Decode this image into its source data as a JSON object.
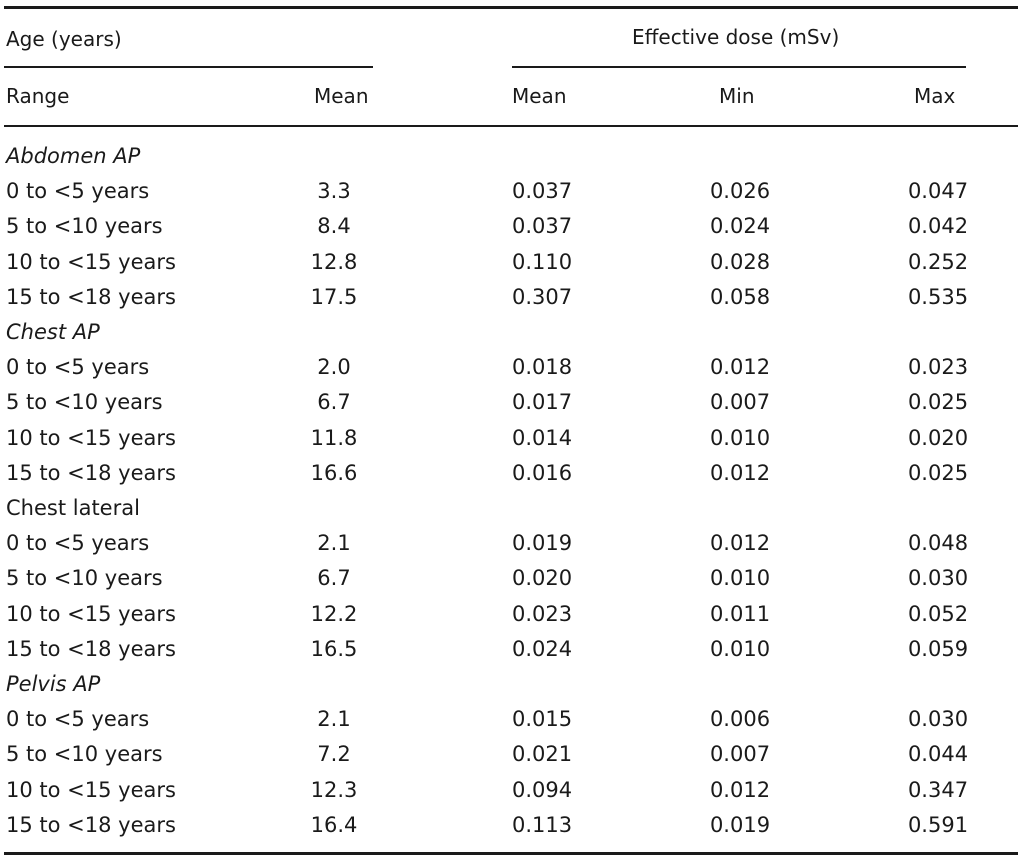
{
  "header": {
    "age_group": "Age (years)",
    "dose_group": "Effective dose (mSv)",
    "col_range": "Range",
    "col_age_mean": "Mean",
    "col_dose_mean": "Mean",
    "col_min": "Min",
    "col_max": "Max"
  },
  "groups": [
    {
      "title": "Abdomen AP",
      "italic": true,
      "rows": [
        {
          "range": "0 to <5 years",
          "age_mean": "3.3",
          "mean": "0.037",
          "min": "0.026",
          "max": "0.047"
        },
        {
          "range": "5 to <10 years",
          "age_mean": "8.4",
          "mean": "0.037",
          "min": "0.024",
          "max": "0.042"
        },
        {
          "range": "10 to <15 years",
          "age_mean": "12.8",
          "mean": "0.110",
          "min": "0.028",
          "max": "0.252"
        },
        {
          "range": "15 to <18 years",
          "age_mean": "17.5",
          "mean": "0.307",
          "min": "0.058",
          "max": "0.535"
        }
      ]
    },
    {
      "title": "Chest AP",
      "italic": true,
      "rows": [
        {
          "range": "0 to <5 years",
          "age_mean": "2.0",
          "mean": "0.018",
          "min": "0.012",
          "max": "0.023"
        },
        {
          "range": "5 to <10 years",
          "age_mean": "6.7",
          "mean": "0.017",
          "min": "0.007",
          "max": "0.025"
        },
        {
          "range": "10 to <15 years",
          "age_mean": "11.8",
          "mean": "0.014",
          "min": "0.010",
          "max": "0.020"
        },
        {
          "range": "15 to <18 years",
          "age_mean": "16.6",
          "mean": "0.016",
          "min": "0.012",
          "max": "0.025"
        }
      ]
    },
    {
      "title": "Chest lateral",
      "italic": false,
      "rows": [
        {
          "range": "0 to <5 years",
          "age_mean": "2.1",
          "mean": "0.019",
          "min": "0.012",
          "max": "0.048"
        },
        {
          "range": "5 to <10 years",
          "age_mean": "6.7",
          "mean": "0.020",
          "min": "0.010",
          "max": "0.030"
        },
        {
          "range": "10 to <15 years",
          "age_mean": "12.2",
          "mean": "0.023",
          "min": "0.011",
          "max": "0.052"
        },
        {
          "range": "15 to <18 years",
          "age_mean": "16.5",
          "mean": "0.024",
          "min": "0.010",
          "max": "0.059"
        }
      ]
    },
    {
      "title": "Pelvis AP",
      "italic": true,
      "rows": [
        {
          "range": "0 to <5 years",
          "age_mean": "2.1",
          "mean": "0.015",
          "min": "0.006",
          "max": "0.030"
        },
        {
          "range": "5 to <10 years",
          "age_mean": "7.2",
          "mean": "0.021",
          "min": "0.007",
          "max": "0.044"
        },
        {
          "range": "10 to <15 years",
          "age_mean": "12.3",
          "mean": "0.094",
          "min": "0.012",
          "max": "0.347"
        },
        {
          "range": "15 to <18 years",
          "age_mean": "16.4",
          "mean": "0.113",
          "min": "0.019",
          "max": "0.591"
        }
      ]
    }
  ]
}
